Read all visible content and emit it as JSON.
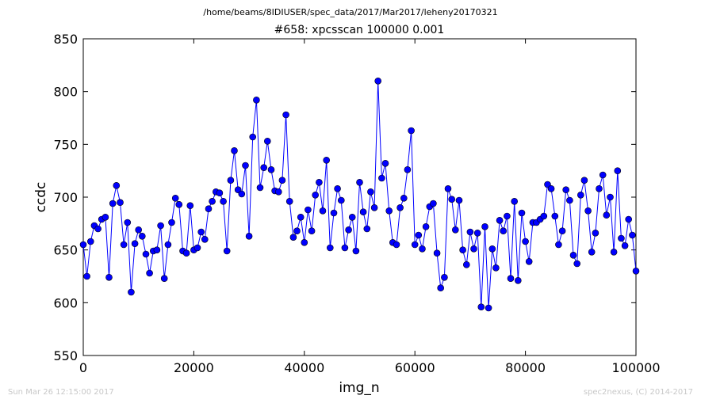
{
  "header": {
    "path": "/home/beams/8IDIUSER/spec_data/2017/Mar2017/leheny20170321",
    "title": "#658: xpcsscan 100000 0.001"
  },
  "footer": {
    "timestamp": "Sun Mar 26 12:15:00 2017",
    "credit": "spec2nexus, (C) 2014-2017"
  },
  "colors": {
    "series": "#0000ff",
    "frame": "#000000",
    "footer_text": "#c8c8c8"
  },
  "chart_data": {
    "type": "line",
    "title": "#658: xpcsscan 100000 0.001",
    "xlabel": "img_n",
    "ylabel": "ccdc",
    "xlim": [
      0,
      100000
    ],
    "ylim": [
      550,
      850
    ],
    "xticks": [
      0,
      20000,
      40000,
      60000,
      80000,
      100000
    ],
    "yticks": [
      550,
      600,
      650,
      700,
      750,
      800,
      850
    ],
    "xtick_labels": [
      "0",
      "20000",
      "40000",
      "60000",
      "80000",
      "100000"
    ],
    "ytick_labels": [
      "550",
      "600",
      "650",
      "700",
      "750",
      "800",
      "850"
    ],
    "grid": false,
    "legend": "none",
    "marker": "circle",
    "series": [
      {
        "x": [
          0,
          667,
          1333,
          2000,
          2667,
          3333,
          4000,
          4667,
          5333,
          6000,
          6667,
          7333,
          8000,
          8667,
          9333,
          10000,
          10667,
          11333,
          12000,
          12667,
          13333,
          14000,
          14667,
          15333,
          16000,
          16667,
          17333,
          18000,
          18667,
          19333,
          20000,
          20667,
          21333,
          22000,
          22667,
          23333,
          24000,
          24667,
          25333,
          26000,
          26667,
          27333,
          28000,
          28667,
          29333,
          30000,
          30667,
          31333,
          32000,
          32667,
          33333,
          34000,
          34667,
          35333,
          36000,
          36667,
          37333,
          38000,
          38667,
          39333,
          40000,
          40667,
          41333,
          42000,
          42667,
          43333,
          44000,
          44667,
          45333,
          46000,
          46667,
          47333,
          48000,
          48667,
          49333,
          50000,
          50667,
          51333,
          52000,
          52667,
          53333,
          54000,
          54667,
          55333,
          56000,
          56667,
          57333,
          58000,
          58667,
          59333,
          60000,
          60667,
          61333,
          62000,
          62667,
          63333,
          64000,
          64667,
          65333,
          66000,
          66667,
          67333,
          68000,
          68667,
          69333,
          70000,
          70667,
          71333,
          72000,
          72667,
          73333,
          74000,
          74667,
          75333,
          76000,
          76667,
          77333,
          78000,
          78667,
          79333,
          80000,
          80667,
          81333,
          82000,
          82667,
          83333,
          84000,
          84667,
          85333,
          86000,
          86667,
          87333,
          88000,
          88667,
          89333,
          90000,
          90667,
          91333,
          92000,
          92667,
          93333,
          94000,
          94667,
          95333,
          96000,
          96667,
          97333,
          98000,
          98667,
          99333,
          100000
        ],
        "values": [
          655,
          625,
          658,
          673,
          670,
          679,
          681,
          624,
          694,
          711,
          695,
          655,
          676,
          610,
          656,
          669,
          663,
          646,
          628,
          649,
          650,
          673,
          623,
          655,
          676,
          699,
          693,
          649,
          647,
          692,
          650,
          652,
          667,
          660,
          689,
          696,
          705,
          704,
          696,
          649,
          716,
          744,
          707,
          703,
          730,
          663,
          757,
          792,
          709,
          728,
          753,
          726,
          706,
          705,
          716,
          778,
          696,
          662,
          668,
          681,
          657,
          688,
          668,
          702,
          714,
          687,
          735,
          652,
          685,
          708,
          697,
          652,
          669,
          681,
          649,
          714,
          686,
          670,
          705,
          690,
          810,
          718,
          732,
          687,
          657,
          655,
          690,
          699,
          726,
          763,
          655,
          664,
          651,
          672,
          691,
          694,
          647,
          614,
          624,
          708,
          698,
          669,
          697,
          650,
          636,
          667,
          651,
          666,
          596,
          672,
          595,
          651,
          633,
          678,
          668,
          682,
          623,
          696,
          621,
          685,
          658,
          639,
          676,
          676,
          679,
          682,
          712,
          708,
          682,
          655,
          668,
          707,
          697,
          645,
          637,
          702,
          716,
          687,
          648,
          666,
          708,
          721,
          683,
          700,
          648,
          725,
          661,
          654,
          679,
          664,
          630
        ]
      }
    ]
  }
}
